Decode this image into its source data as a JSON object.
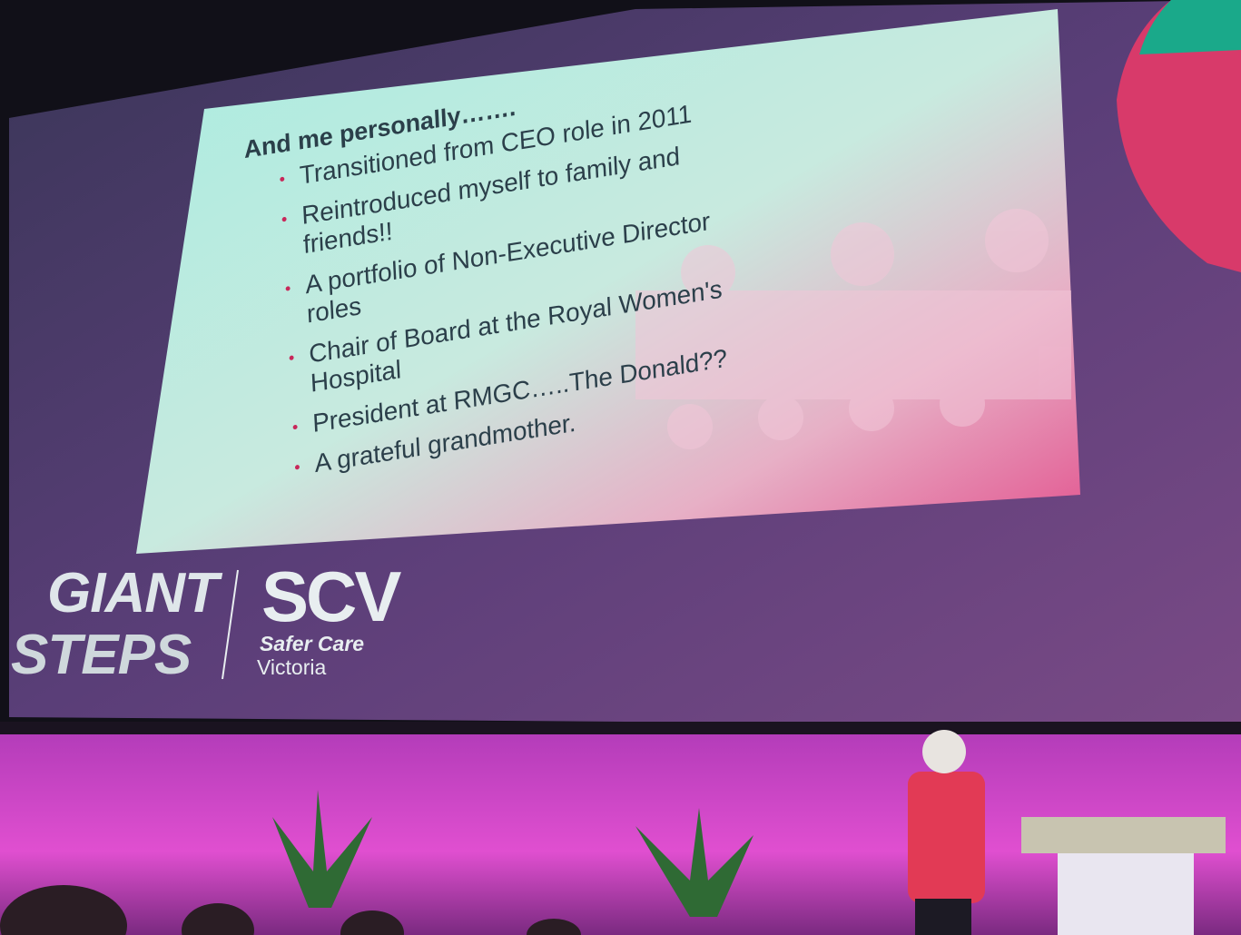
{
  "slide": {
    "title": "And me personally…….",
    "bullets": [
      "Transitioned from CEO role in 2011",
      "Reintroduced myself to family and friends!!",
      "A portfolio of Non-Executive Director roles",
      "Chair of Board at the Royal Women's Hospital",
      "President at RMGC…..The Donald??",
      "A grateful grandmother."
    ]
  },
  "logo": {
    "event_line1": "GIANT",
    "event_line2": "STEPS",
    "org_abbr": "SCV",
    "org_name_line1": "Safer Care",
    "org_name_line2": "Victoria"
  }
}
